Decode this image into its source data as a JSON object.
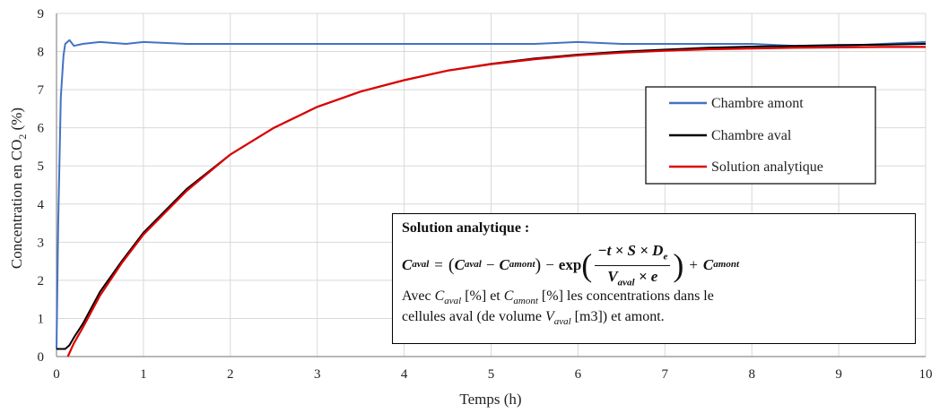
{
  "chart_data": {
    "type": "line",
    "xlabel": "Temps (h)",
    "ylabel_main": "Concentration en CO",
    "ylabel_sub": "2",
    "ylabel_unit": " (%)",
    "xlim": [
      0,
      10
    ],
    "ylim": [
      0,
      9
    ],
    "x_ticks": [
      "0",
      "1",
      "2",
      "3",
      "4",
      "5",
      "6",
      "7",
      "8",
      "9",
      "10"
    ],
    "y_ticks": [
      "0",
      "1",
      "2",
      "3",
      "4",
      "5",
      "6",
      "7",
      "8",
      "9"
    ],
    "grid": true,
    "legend_position": "right",
    "series": [
      {
        "name": "Chambre amont",
        "color": "#4472C4",
        "x": [
          0,
          0.02,
          0.05,
          0.08,
          0.1,
          0.15,
          0.2,
          0.3,
          0.5,
          0.8,
          1,
          1.5,
          2,
          2.5,
          3,
          3.5,
          4,
          4.5,
          5,
          5.5,
          6,
          6.5,
          7,
          7.5,
          8,
          8.5,
          9,
          9.5,
          10
        ],
        "y": [
          0.2,
          3.5,
          6.8,
          7.9,
          8.2,
          8.3,
          8.15,
          8.2,
          8.25,
          8.2,
          8.25,
          8.2,
          8.2,
          8.2,
          8.2,
          8.2,
          8.2,
          8.2,
          8.2,
          8.2,
          8.25,
          8.2,
          8.2,
          8.2,
          8.2,
          8.15,
          8.15,
          8.2,
          8.25
        ]
      },
      {
        "name": "Chambre aval",
        "color": "#000000",
        "x": [
          0,
          0.1,
          0.15,
          0.2,
          0.3,
          0.5,
          0.75,
          1,
          1.5,
          2,
          2.5,
          3,
          3.5,
          4,
          4.5,
          5,
          5.5,
          6,
          6.5,
          7,
          7.5,
          8,
          8.5,
          9,
          9.5,
          10
        ],
        "y": [
          0.2,
          0.2,
          0.3,
          0.5,
          0.85,
          1.7,
          2.5,
          3.25,
          4.4,
          5.3,
          6.0,
          6.55,
          6.95,
          7.25,
          7.5,
          7.68,
          7.82,
          7.92,
          8.0,
          8.05,
          8.1,
          8.13,
          8.15,
          8.17,
          8.18,
          8.2
        ]
      },
      {
        "name": "Solution analytique",
        "color": "#E00000",
        "x": [
          0.13,
          0.2,
          0.3,
          0.5,
          0.75,
          1,
          1.5,
          2,
          2.5,
          3,
          3.5,
          4,
          4.5,
          5,
          5.5,
          6,
          6.5,
          7,
          7.5,
          8,
          8.5,
          9,
          9.5,
          10
        ],
        "y": [
          0,
          0.35,
          0.75,
          1.6,
          2.45,
          3.2,
          4.35,
          5.3,
          6.0,
          6.55,
          6.95,
          7.25,
          7.5,
          7.67,
          7.8,
          7.9,
          7.97,
          8.02,
          8.06,
          8.08,
          8.1,
          8.11,
          8.12,
          8.12
        ]
      }
    ]
  },
  "formula_box": {
    "title": "Solution analytique :",
    "eq_lhs": "C",
    "eq_lhs_sub": "aval",
    "eq_eq": "=",
    "eq_p1_c": "C",
    "eq_p1_sub": "aval",
    "eq_minus": "−",
    "eq_p2_c": "C",
    "eq_p2_sub": "amont",
    "eq_exp_minus": "−",
    "eq_exp": "exp",
    "eq_num": "−t × S × D",
    "eq_num_sub": "e",
    "eq_den": "V",
    "eq_den_sub": "aval",
    "eq_den_tail": " × e",
    "eq_plus": "+",
    "eq_tail_c": "C",
    "eq_tail_sub": "amont",
    "line1_prefix": "Avec ",
    "line1_c1": "C",
    "line1_c1_sub": "aval",
    "line1_mid": " [%] et ",
    "line1_c2": "C",
    "line1_c2_sub": "amont",
    "line1_suffix": " [%] les concentrations dans le",
    "line2_prefix": "cellules aval (de volume ",
    "line2_v": "V",
    "line2_v_sub": "aval",
    "line2_suffix": " [m3]) et amont."
  }
}
